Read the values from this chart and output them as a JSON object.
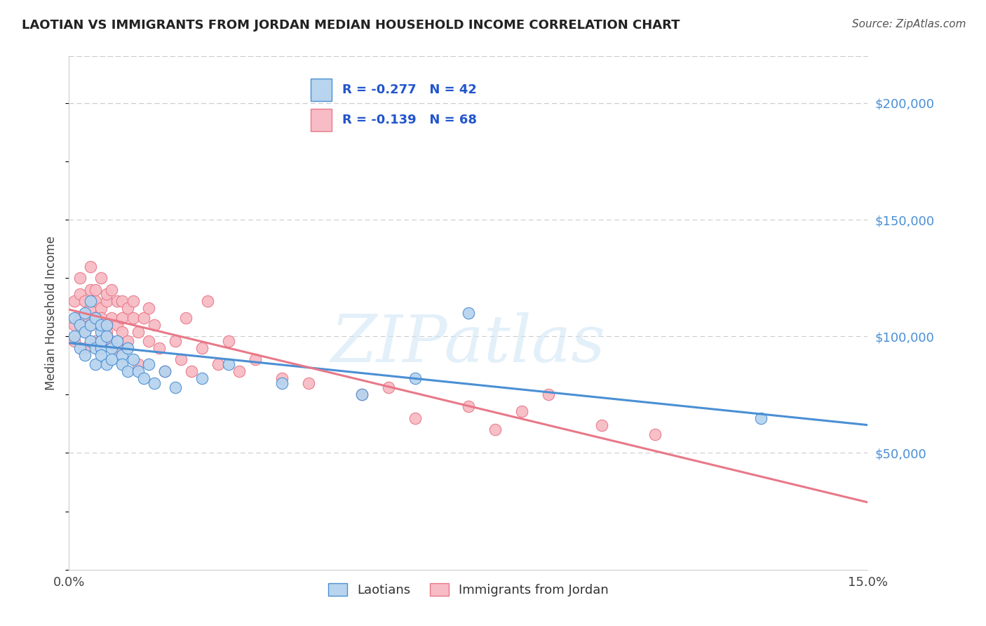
{
  "title": "LAOTIAN VS IMMIGRANTS FROM JORDAN MEDIAN HOUSEHOLD INCOME CORRELATION CHART",
  "source_text": "Source: ZipAtlas.com",
  "ylabel": "Median Household Income",
  "xlim": [
    0.0,
    0.15
  ],
  "ylim": [
    0,
    220000
  ],
  "ytick_values": [
    50000,
    100000,
    150000,
    200000
  ],
  "ytick_labels": [
    "$50,000",
    "$100,000",
    "$150,000",
    "$200,000"
  ],
  "watermark": "ZIPatlas",
  "legend_r1": "R = -0.277   N = 42",
  "legend_r2": "R = -0.139   N = 68",
  "bottom_legend": [
    "Laotians",
    "Immigrants from Jordan"
  ],
  "blue_color": "#4a8fd4",
  "pink_color": "#e87888",
  "blue_fill": "#b8d4ee",
  "pink_fill": "#f7bcc5",
  "blue_edge": "#4a8fd4",
  "pink_edge": "#e87888",
  "legend_text_color": "#2255cc",
  "laotian_x": [
    0.001,
    0.001,
    0.002,
    0.002,
    0.003,
    0.003,
    0.003,
    0.004,
    0.004,
    0.004,
    0.005,
    0.005,
    0.005,
    0.006,
    0.006,
    0.006,
    0.006,
    0.006,
    0.007,
    0.007,
    0.007,
    0.008,
    0.008,
    0.009,
    0.01,
    0.01,
    0.011,
    0.011,
    0.012,
    0.013,
    0.014,
    0.015,
    0.016,
    0.018,
    0.02,
    0.025,
    0.03,
    0.04,
    0.055,
    0.065,
    0.075,
    0.13
  ],
  "laotian_y": [
    100000,
    108000,
    105000,
    95000,
    102000,
    92000,
    110000,
    98000,
    105000,
    115000,
    95000,
    108000,
    88000,
    102000,
    95000,
    105000,
    92000,
    98000,
    100000,
    88000,
    105000,
    95000,
    90000,
    98000,
    92000,
    88000,
    95000,
    85000,
    90000,
    85000,
    82000,
    88000,
    80000,
    85000,
    78000,
    82000,
    88000,
    80000,
    75000,
    82000,
    110000,
    65000
  ],
  "jordan_x": [
    0.001,
    0.001,
    0.001,
    0.002,
    0.002,
    0.002,
    0.003,
    0.003,
    0.003,
    0.003,
    0.004,
    0.004,
    0.004,
    0.004,
    0.005,
    0.005,
    0.005,
    0.005,
    0.006,
    0.006,
    0.006,
    0.006,
    0.006,
    0.007,
    0.007,
    0.007,
    0.008,
    0.008,
    0.008,
    0.009,
    0.009,
    0.009,
    0.01,
    0.01,
    0.01,
    0.011,
    0.011,
    0.012,
    0.012,
    0.013,
    0.013,
    0.014,
    0.015,
    0.015,
    0.016,
    0.017,
    0.018,
    0.02,
    0.021,
    0.022,
    0.023,
    0.025,
    0.026,
    0.028,
    0.03,
    0.032,
    0.035,
    0.04,
    0.045,
    0.055,
    0.06,
    0.065,
    0.075,
    0.08,
    0.085,
    0.09,
    0.1,
    0.11
  ],
  "jordan_y": [
    98000,
    105000,
    115000,
    125000,
    108000,
    118000,
    102000,
    115000,
    108000,
    95000,
    120000,
    112000,
    105000,
    130000,
    115000,
    108000,
    98000,
    120000,
    112000,
    105000,
    125000,
    98000,
    108000,
    115000,
    102000,
    118000,
    108000,
    120000,
    98000,
    105000,
    115000,
    95000,
    108000,
    115000,
    102000,
    112000,
    98000,
    108000,
    115000,
    102000,
    88000,
    108000,
    98000,
    112000,
    105000,
    95000,
    85000,
    98000,
    90000,
    108000,
    85000,
    95000,
    115000,
    88000,
    98000,
    85000,
    90000,
    82000,
    80000,
    75000,
    78000,
    65000,
    70000,
    60000,
    68000,
    75000,
    62000,
    58000
  ],
  "title_fontsize": 13,
  "source_fontsize": 11,
  "tick_fontsize": 13,
  "ylabel_fontsize": 12,
  "legend_fontsize": 13
}
